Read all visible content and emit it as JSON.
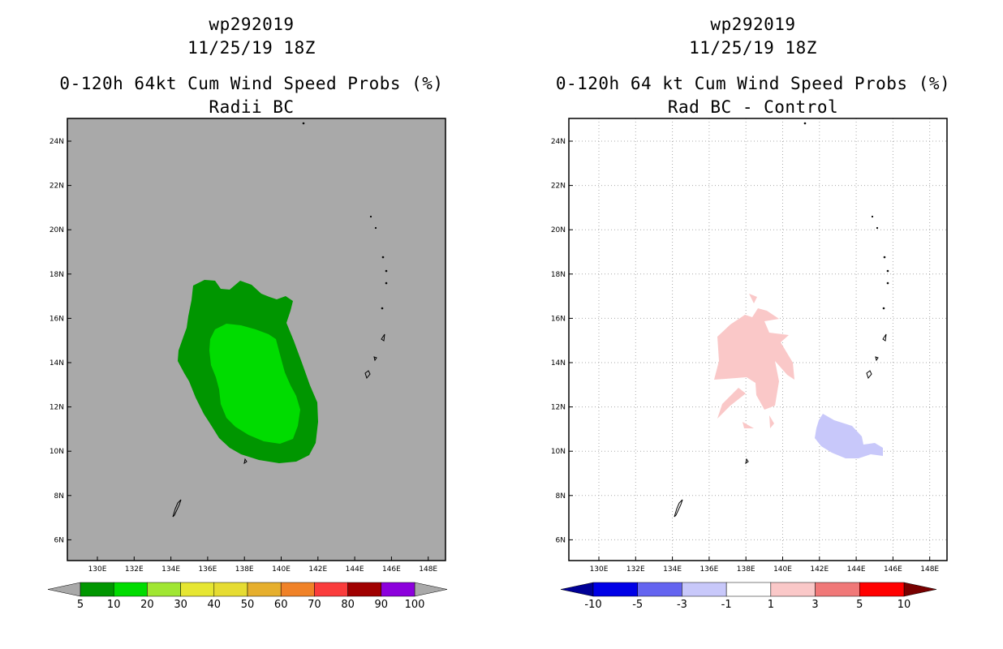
{
  "left_panel": {
    "title": {
      "storm_id": "wp292019",
      "datetime": "11/25/19 18Z",
      "product": "0-120h 64kt Cum Wind Speed Probs (%)",
      "subtitle": "Radii BC"
    },
    "lat_ticks": [
      "24N",
      "22N",
      "20N",
      "18N",
      "16N",
      "14N",
      "12N",
      "10N",
      "8N",
      "6N"
    ],
    "lon_ticks": [
      "130E",
      "132E",
      "134E",
      "136E",
      "138E",
      "140E",
      "142E",
      "144E",
      "146E",
      "148E"
    ],
    "colorbar": {
      "labels": [
        "5",
        "10",
        "20",
        "30",
        "40",
        "50",
        "60",
        "70",
        "80",
        "90",
        "100"
      ],
      "colors": [
        "#009600",
        "#00dc00",
        "#a0e632",
        "#e6e632",
        "#e6dc32",
        "#e6af2d",
        "#f08228",
        "#fa3c3c",
        "#a00000",
        "#8c00dc"
      ],
      "below_color": "#a9a9a9",
      "above_color": "#a9a9a9"
    },
    "field": {
      "background_color": "#a9a9a9",
      "contour_5_color": "#009600",
      "contour_10_color": "#00dc00"
    }
  },
  "right_panel": {
    "title": {
      "storm_id": "wp292019",
      "datetime": "11/25/19 18Z",
      "product": "0-120h 64 kt Cum Wind Speed Probs (%)",
      "subtitle": "Rad BC - Control"
    },
    "lat_ticks": [
      "24N",
      "22N",
      "20N",
      "18N",
      "16N",
      "14N",
      "12N",
      "10N",
      "8N",
      "6N"
    ],
    "lon_ticks": [
      "130E",
      "132E",
      "134E",
      "136E",
      "138E",
      "140E",
      "142E",
      "144E",
      "146E",
      "148E"
    ],
    "colorbar": {
      "labels": [
        "-10",
        "-5",
        "-3",
        "-1",
        "1",
        "3",
        "5",
        "10"
      ],
      "colors": [
        "#0000e6",
        "#6464f0",
        "#c8c8fa",
        "#ffffff",
        "#fac8c8",
        "#f07878",
        "#ff0000"
      ],
      "below_color": "#000096",
      "above_color": "#780000"
    },
    "field": {
      "positive_color": "#fac8c8",
      "negative_color": "#c8c8fa",
      "grid_color": "#aaaaaa"
    }
  }
}
